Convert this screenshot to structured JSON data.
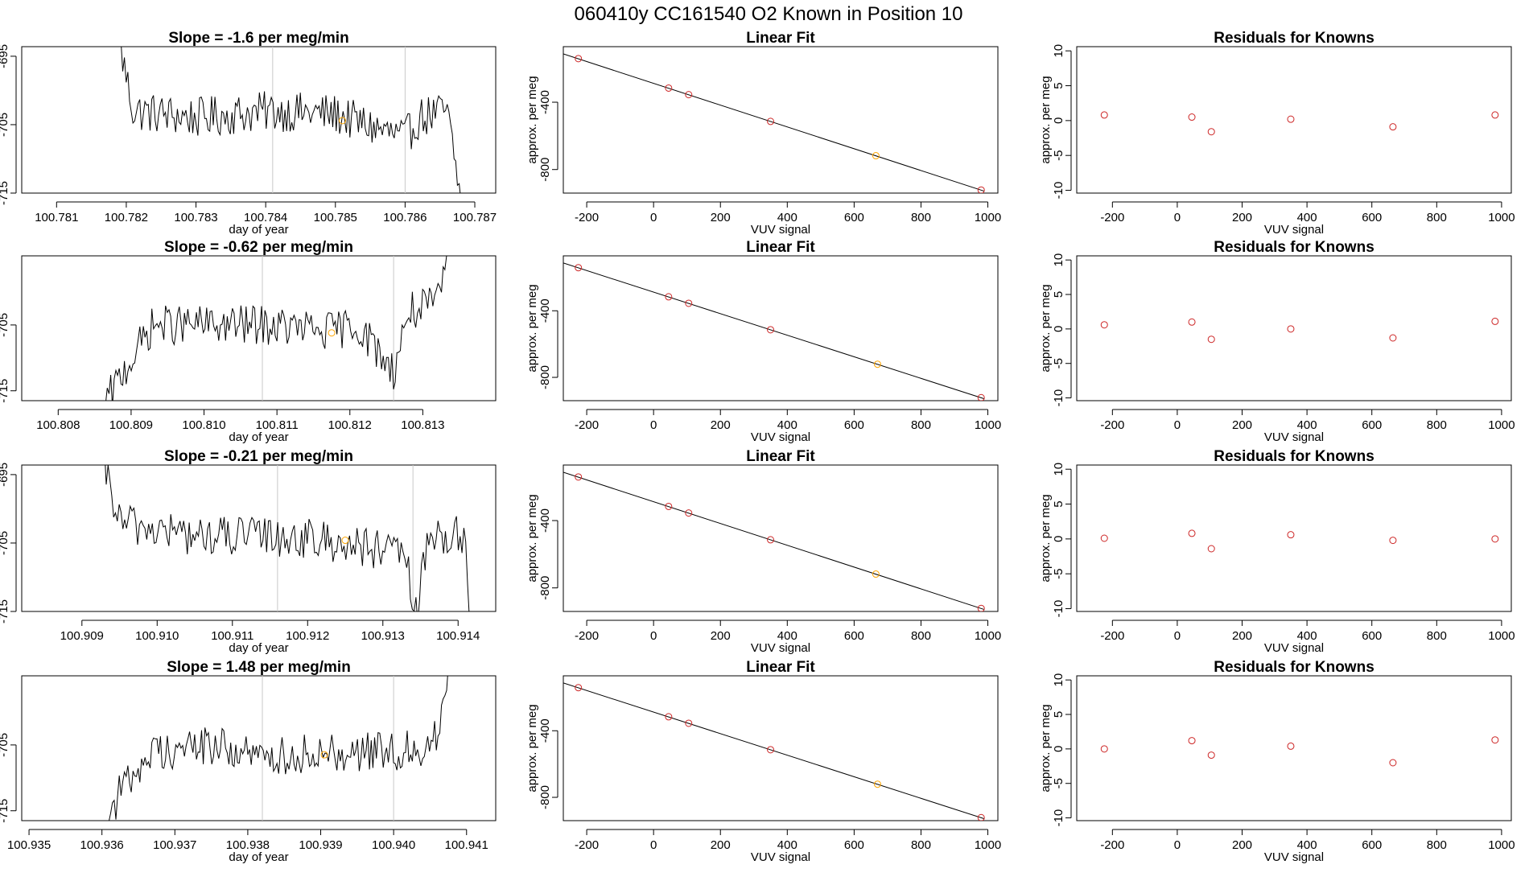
{
  "suptitle": "060410y      CC161540   O2 Known in Position  10",
  "chart_data": [
    {
      "panel": "drift-1",
      "type": "line",
      "title": "Slope =  -1.6  per meg/min",
      "xlabel": "day of year",
      "ylabel": "approx. per meg",
      "xlim": [
        100.7805,
        100.7873
      ],
      "ylim": [
        -715,
        -693.6
      ],
      "xticks": [
        100.781,
        100.782,
        100.783,
        100.784,
        100.785,
        100.786,
        100.787
      ],
      "xtick_labels": [
        "100.781",
        "100.782",
        "100.783",
        "100.784",
        "100.785",
        "100.786",
        "100.787"
      ],
      "yticks": [
        -715,
        -705,
        -695
      ],
      "ytick_labels": [
        "-715",
        "-705",
        "-695"
      ],
      "vlines": [
        100.7841,
        100.786
      ],
      "trace_start": 100.7819,
      "trace_end": 100.7868,
      "trace_trend": [
        [
          100.7819,
          -693
        ],
        [
          100.7821,
          -703
        ],
        [
          100.783,
          -704
        ],
        [
          100.7841,
          -703
        ],
        [
          100.785,
          -703.5
        ],
        [
          100.786,
          -707
        ],
        [
          100.7862,
          -704
        ],
        [
          100.7866,
          -703
        ],
        [
          100.7868,
          -716
        ]
      ],
      "trace_noise": 3,
      "points": [
        {
          "x": 100.7851,
          "y": -704.4,
          "color": "#FFA500"
        }
      ]
    },
    {
      "panel": "fit-1",
      "type": "scatter",
      "title": "Linear Fit",
      "xlabel": "VUV signal",
      "ylabel": "approx. per meg",
      "xlim": [
        -270,
        1030
      ],
      "ylim": [
        -940,
        -70
      ],
      "xticks": [
        -200,
        0,
        200,
        400,
        600,
        800,
        1000
      ],
      "xtick_labels": [
        "-200",
        "0",
        "200",
        "400",
        "600",
        "800",
        "1000"
      ],
      "yticks": [
        -800,
        -400
      ],
      "ytick_labels": [
        "-800",
        "-400"
      ],
      "line": {
        "x": [
          -270,
          990
        ],
        "y": [
          -113,
          -929
        ]
      },
      "points": [
        {
          "x": -225,
          "y": -141,
          "color": "#CD2626"
        },
        {
          "x": 45,
          "y": -316,
          "color": "#CD2626"
        },
        {
          "x": 105,
          "y": -355,
          "color": "#CD2626"
        },
        {
          "x": 350,
          "y": -514,
          "color": "#CD2626"
        },
        {
          "x": 665,
          "y": -718,
          "color": "#FFA500"
        },
        {
          "x": 980,
          "y": -922,
          "color": "#CD2626"
        }
      ]
    },
    {
      "panel": "resid-1",
      "type": "scatter",
      "title": "Residuals for Knowns",
      "xlabel": "VUV signal",
      "ylabel": "approx. per meg",
      "xlim": [
        -310,
        1030
      ],
      "ylim": [
        -10.4,
        10.6
      ],
      "xticks": [
        -200,
        0,
        200,
        400,
        600,
        800,
        1000
      ],
      "xtick_labels": [
        "-200",
        "0",
        "200",
        "400",
        "600",
        "800",
        "1000"
      ],
      "yticks": [
        -10,
        -5,
        0,
        5,
        10
      ],
      "ytick_labels": [
        "-10",
        "-5",
        "0",
        "5",
        "10"
      ],
      "points": [
        {
          "x": -225,
          "y": 0.8,
          "color": "#CD2626"
        },
        {
          "x": 45,
          "y": 0.5,
          "color": "#CD2626"
        },
        {
          "x": 105,
          "y": -1.6,
          "color": "#CD2626"
        },
        {
          "x": 350,
          "y": 0.2,
          "color": "#CD2626"
        },
        {
          "x": 665,
          "y": -0.9,
          "color": "#CD2626"
        },
        {
          "x": 980,
          "y": 0.8,
          "color": "#CD2626"
        }
      ]
    },
    {
      "panel": "drift-2",
      "type": "line",
      "title": "Slope =  -0.62  per meg/min",
      "xlabel": "day of year",
      "ylabel": "approx. per meg",
      "xlim": [
        100.8075,
        100.814
      ],
      "ylim": [
        -716.5,
        -694.5
      ],
      "xticks": [
        100.808,
        100.809,
        100.81,
        100.811,
        100.812,
        100.813
      ],
      "xtick_labels": [
        "100.808",
        "100.809",
        "100.810",
        "100.811",
        "100.812",
        "100.813"
      ],
      "yticks": [
        -715,
        -705
      ],
      "ytick_labels": [
        "-715",
        "-705"
      ],
      "vlines": [
        100.8108,
        100.8126
      ],
      "trace_start": 100.80865,
      "trace_end": 100.81335,
      "trace_trend": [
        [
          100.80865,
          -717
        ],
        [
          100.8089,
          -712
        ],
        [
          100.8093,
          -705
        ],
        [
          100.8108,
          -705
        ],
        [
          100.8117,
          -706
        ],
        [
          100.8121,
          -705
        ],
        [
          100.8126,
          -712
        ],
        [
          100.8128,
          -703
        ],
        [
          100.8132,
          -702
        ],
        [
          100.81335,
          -693
        ]
      ],
      "trace_noise": 3,
      "points": [
        {
          "x": 100.81175,
          "y": -706.2,
          "color": "#FFA500"
        }
      ]
    },
    {
      "panel": "fit-2",
      "type": "scatter",
      "title": "Linear Fit",
      "xlabel": "VUV signal",
      "ylabel": "approx. per meg",
      "xlim": [
        -270,
        1030
      ],
      "ylim": [
        -940,
        -70
      ],
      "xticks": [
        -200,
        0,
        200,
        400,
        600,
        800,
        1000
      ],
      "xtick_labels": [
        "-200",
        "0",
        "200",
        "400",
        "600",
        "800",
        "1000"
      ],
      "yticks": [
        -800,
        -400
      ],
      "ytick_labels": [
        "-800",
        "-400"
      ],
      "line": {
        "x": [
          -270,
          990
        ],
        "y": [
          -113,
          -929
        ]
      },
      "points": [
        {
          "x": -225,
          "y": -141,
          "color": "#CD2626"
        },
        {
          "x": 45,
          "y": -316,
          "color": "#CD2626"
        },
        {
          "x": 105,
          "y": -355,
          "color": "#CD2626"
        },
        {
          "x": 350,
          "y": -514,
          "color": "#CD2626"
        },
        {
          "x": 670,
          "y": -721,
          "color": "#FFA500"
        },
        {
          "x": 980,
          "y": -922,
          "color": "#CD2626"
        }
      ]
    },
    {
      "panel": "resid-2",
      "type": "scatter",
      "title": "Residuals for Knowns",
      "xlabel": "VUV signal",
      "ylabel": "approx. per meg",
      "xlim": [
        -310,
        1030
      ],
      "ylim": [
        -10.4,
        10.6
      ],
      "xticks": [
        -200,
        0,
        200,
        400,
        600,
        800,
        1000
      ],
      "xtick_labels": [
        "-200",
        "0",
        "200",
        "400",
        "600",
        "800",
        "1000"
      ],
      "yticks": [
        -10,
        -5,
        0,
        5,
        10
      ],
      "ytick_labels": [
        "-10",
        "-5",
        "0",
        "5",
        "10"
      ],
      "points": [
        {
          "x": -225,
          "y": 0.6,
          "color": "#CD2626"
        },
        {
          "x": 45,
          "y": 1.0,
          "color": "#CD2626"
        },
        {
          "x": 105,
          "y": -1.5,
          "color": "#CD2626"
        },
        {
          "x": 350,
          "y": 0.0,
          "color": "#CD2626"
        },
        {
          "x": 665,
          "y": -1.3,
          "color": "#CD2626"
        },
        {
          "x": 980,
          "y": 1.1,
          "color": "#CD2626"
        }
      ]
    },
    {
      "panel": "drift-3",
      "type": "line",
      "title": "Slope =  -0.21  per meg/min",
      "xlabel": "day of year",
      "ylabel": "approx. per meg",
      "xlim": [
        100.9082,
        100.9145
      ],
      "ylim": [
        -715,
        -693.6
      ],
      "xticks": [
        100.909,
        100.91,
        100.911,
        100.912,
        100.913,
        100.914
      ],
      "xtick_labels": [
        "100.909",
        "100.910",
        "100.911",
        "100.912",
        "100.913",
        "100.914"
      ],
      "yticks": [
        -715,
        -705,
        -695
      ],
      "ytick_labels": [
        "-715",
        "-705",
        "-695"
      ],
      "vlines": [
        100.9116,
        100.9134
      ],
      "trace_start": 100.90925,
      "trace_end": 100.91415,
      "trace_trend": [
        [
          100.90925,
          -692
        ],
        [
          100.9095,
          -702
        ],
        [
          100.9105,
          -704
        ],
        [
          100.9116,
          -704
        ],
        [
          100.9125,
          -705
        ],
        [
          100.9133,
          -707
        ],
        [
          100.91345,
          -716
        ],
        [
          100.9136,
          -704
        ],
        [
          100.9141,
          -704
        ],
        [
          100.91415,
          -716
        ]
      ],
      "trace_noise": 3,
      "points": [
        {
          "x": 100.9125,
          "y": -704.6,
          "color": "#FFA500"
        }
      ]
    },
    {
      "panel": "fit-3",
      "type": "scatter",
      "title": "Linear Fit",
      "xlabel": "VUV signal",
      "ylabel": "approx. per meg",
      "xlim": [
        -270,
        1030
      ],
      "ylim": [
        -940,
        -70
      ],
      "xticks": [
        -200,
        0,
        200,
        400,
        600,
        800,
        1000
      ],
      "xtick_labels": [
        "-200",
        "0",
        "200",
        "400",
        "600",
        "800",
        "1000"
      ],
      "yticks": [
        -800,
        -400
      ],
      "ytick_labels": [
        "-800",
        "-400"
      ],
      "line": {
        "x": [
          -270,
          990
        ],
        "y": [
          -113,
          -929
        ]
      },
      "points": [
        {
          "x": -225,
          "y": -141,
          "color": "#CD2626"
        },
        {
          "x": 45,
          "y": -316,
          "color": "#CD2626"
        },
        {
          "x": 105,
          "y": -355,
          "color": "#CD2626"
        },
        {
          "x": 350,
          "y": -514,
          "color": "#CD2626"
        },
        {
          "x": 665,
          "y": -718,
          "color": "#FFA500"
        },
        {
          "x": 980,
          "y": -922,
          "color": "#CD2626"
        }
      ]
    },
    {
      "panel": "resid-3",
      "type": "scatter",
      "title": "Residuals for Knowns",
      "xlabel": "VUV signal",
      "ylabel": "approx. per meg",
      "xlim": [
        -310,
        1030
      ],
      "ylim": [
        -10.4,
        10.6
      ],
      "xticks": [
        -200,
        0,
        200,
        400,
        600,
        800,
        1000
      ],
      "xtick_labels": [
        "-200",
        "0",
        "200",
        "400",
        "600",
        "800",
        "1000"
      ],
      "yticks": [
        -10,
        -5,
        0,
        5,
        10
      ],
      "ytick_labels": [
        "-10",
        "-5",
        "0",
        "5",
        "10"
      ],
      "points": [
        {
          "x": -225,
          "y": 0.1,
          "color": "#CD2626"
        },
        {
          "x": 45,
          "y": 0.8,
          "color": "#CD2626"
        },
        {
          "x": 105,
          "y": -1.4,
          "color": "#CD2626"
        },
        {
          "x": 350,
          "y": 0.6,
          "color": "#CD2626"
        },
        {
          "x": 665,
          "y": -0.2,
          "color": "#CD2626"
        },
        {
          "x": 980,
          "y": 0.0,
          "color": "#CD2626"
        }
      ]
    },
    {
      "panel": "drift-4",
      "type": "line",
      "title": "Slope =  1.48  per meg/min",
      "xlabel": "day of year",
      "ylabel": "approx. per meg",
      "xlim": [
        100.9349,
        100.9414
      ],
      "ylim": [
        -716.5,
        -694.5
      ],
      "xticks": [
        100.935,
        100.936,
        100.937,
        100.938,
        100.939,
        100.94,
        100.941
      ],
      "xtick_labels": [
        "100.935",
        "100.936",
        "100.937",
        "100.938",
        "100.939",
        "100.940",
        "100.941"
      ],
      "yticks": [
        -715,
        -705
      ],
      "ytick_labels": [
        "-715",
        "-705"
      ],
      "vlines": [
        100.9382,
        100.94
      ],
      "trace_start": 100.93605,
      "trace_end": 100.94075,
      "trace_trend": [
        [
          100.93605,
          -717
        ],
        [
          100.9363,
          -711
        ],
        [
          100.9367,
          -706
        ],
        [
          100.9375,
          -705
        ],
        [
          100.9382,
          -707
        ],
        [
          100.939,
          -706
        ],
        [
          100.94,
          -706
        ],
        [
          100.9405,
          -705
        ],
        [
          100.94065,
          -702
        ],
        [
          100.94075,
          -693
        ]
      ],
      "trace_noise": 3,
      "points": [
        {
          "x": 100.93905,
          "y": -706.5,
          "color": "#FFA500"
        }
      ]
    },
    {
      "panel": "fit-4",
      "type": "scatter",
      "title": "Linear Fit",
      "xlabel": "VUV signal",
      "ylabel": "approx. per meg",
      "xlim": [
        -270,
        1030
      ],
      "ylim": [
        -940,
        -70
      ],
      "xticks": [
        -200,
        0,
        200,
        400,
        600,
        800,
        1000
      ],
      "xtick_labels": [
        "-200",
        "0",
        "200",
        "400",
        "600",
        "800",
        "1000"
      ],
      "yticks": [
        -800,
        -400
      ],
      "ytick_labels": [
        "-800",
        "-400"
      ],
      "line": {
        "x": [
          -270,
          990
        ],
        "y": [
          -113,
          -929
        ]
      },
      "points": [
        {
          "x": -225,
          "y": -141,
          "color": "#CD2626"
        },
        {
          "x": 45,
          "y": -316,
          "color": "#CD2626"
        },
        {
          "x": 105,
          "y": -355,
          "color": "#CD2626"
        },
        {
          "x": 350,
          "y": -514,
          "color": "#CD2626"
        },
        {
          "x": 670,
          "y": -721,
          "color": "#FFA500"
        },
        {
          "x": 980,
          "y": -922,
          "color": "#CD2626"
        }
      ]
    },
    {
      "panel": "resid-4",
      "type": "scatter",
      "title": "Residuals for Knowns",
      "xlabel": "VUV signal",
      "ylabel": "approx. per meg",
      "xlim": [
        -310,
        1030
      ],
      "ylim": [
        -10.4,
        10.6
      ],
      "xticks": [
        -200,
        0,
        200,
        400,
        600,
        800,
        1000
      ],
      "xtick_labels": [
        "-200",
        "0",
        "200",
        "400",
        "600",
        "800",
        "1000"
      ],
      "yticks": [
        -10,
        -5,
        0,
        5,
        10
      ],
      "ytick_labels": [
        "-10",
        "-5",
        "0",
        "5",
        "10"
      ],
      "points": [
        {
          "x": -225,
          "y": 0.0,
          "color": "#CD2626"
        },
        {
          "x": 45,
          "y": 1.2,
          "color": "#CD2626"
        },
        {
          "x": 105,
          "y": -0.9,
          "color": "#CD2626"
        },
        {
          "x": 350,
          "y": 0.4,
          "color": "#CD2626"
        },
        {
          "x": 665,
          "y": -2.0,
          "color": "#CD2626"
        },
        {
          "x": 980,
          "y": 1.3,
          "color": "#CD2626"
        }
      ]
    }
  ]
}
